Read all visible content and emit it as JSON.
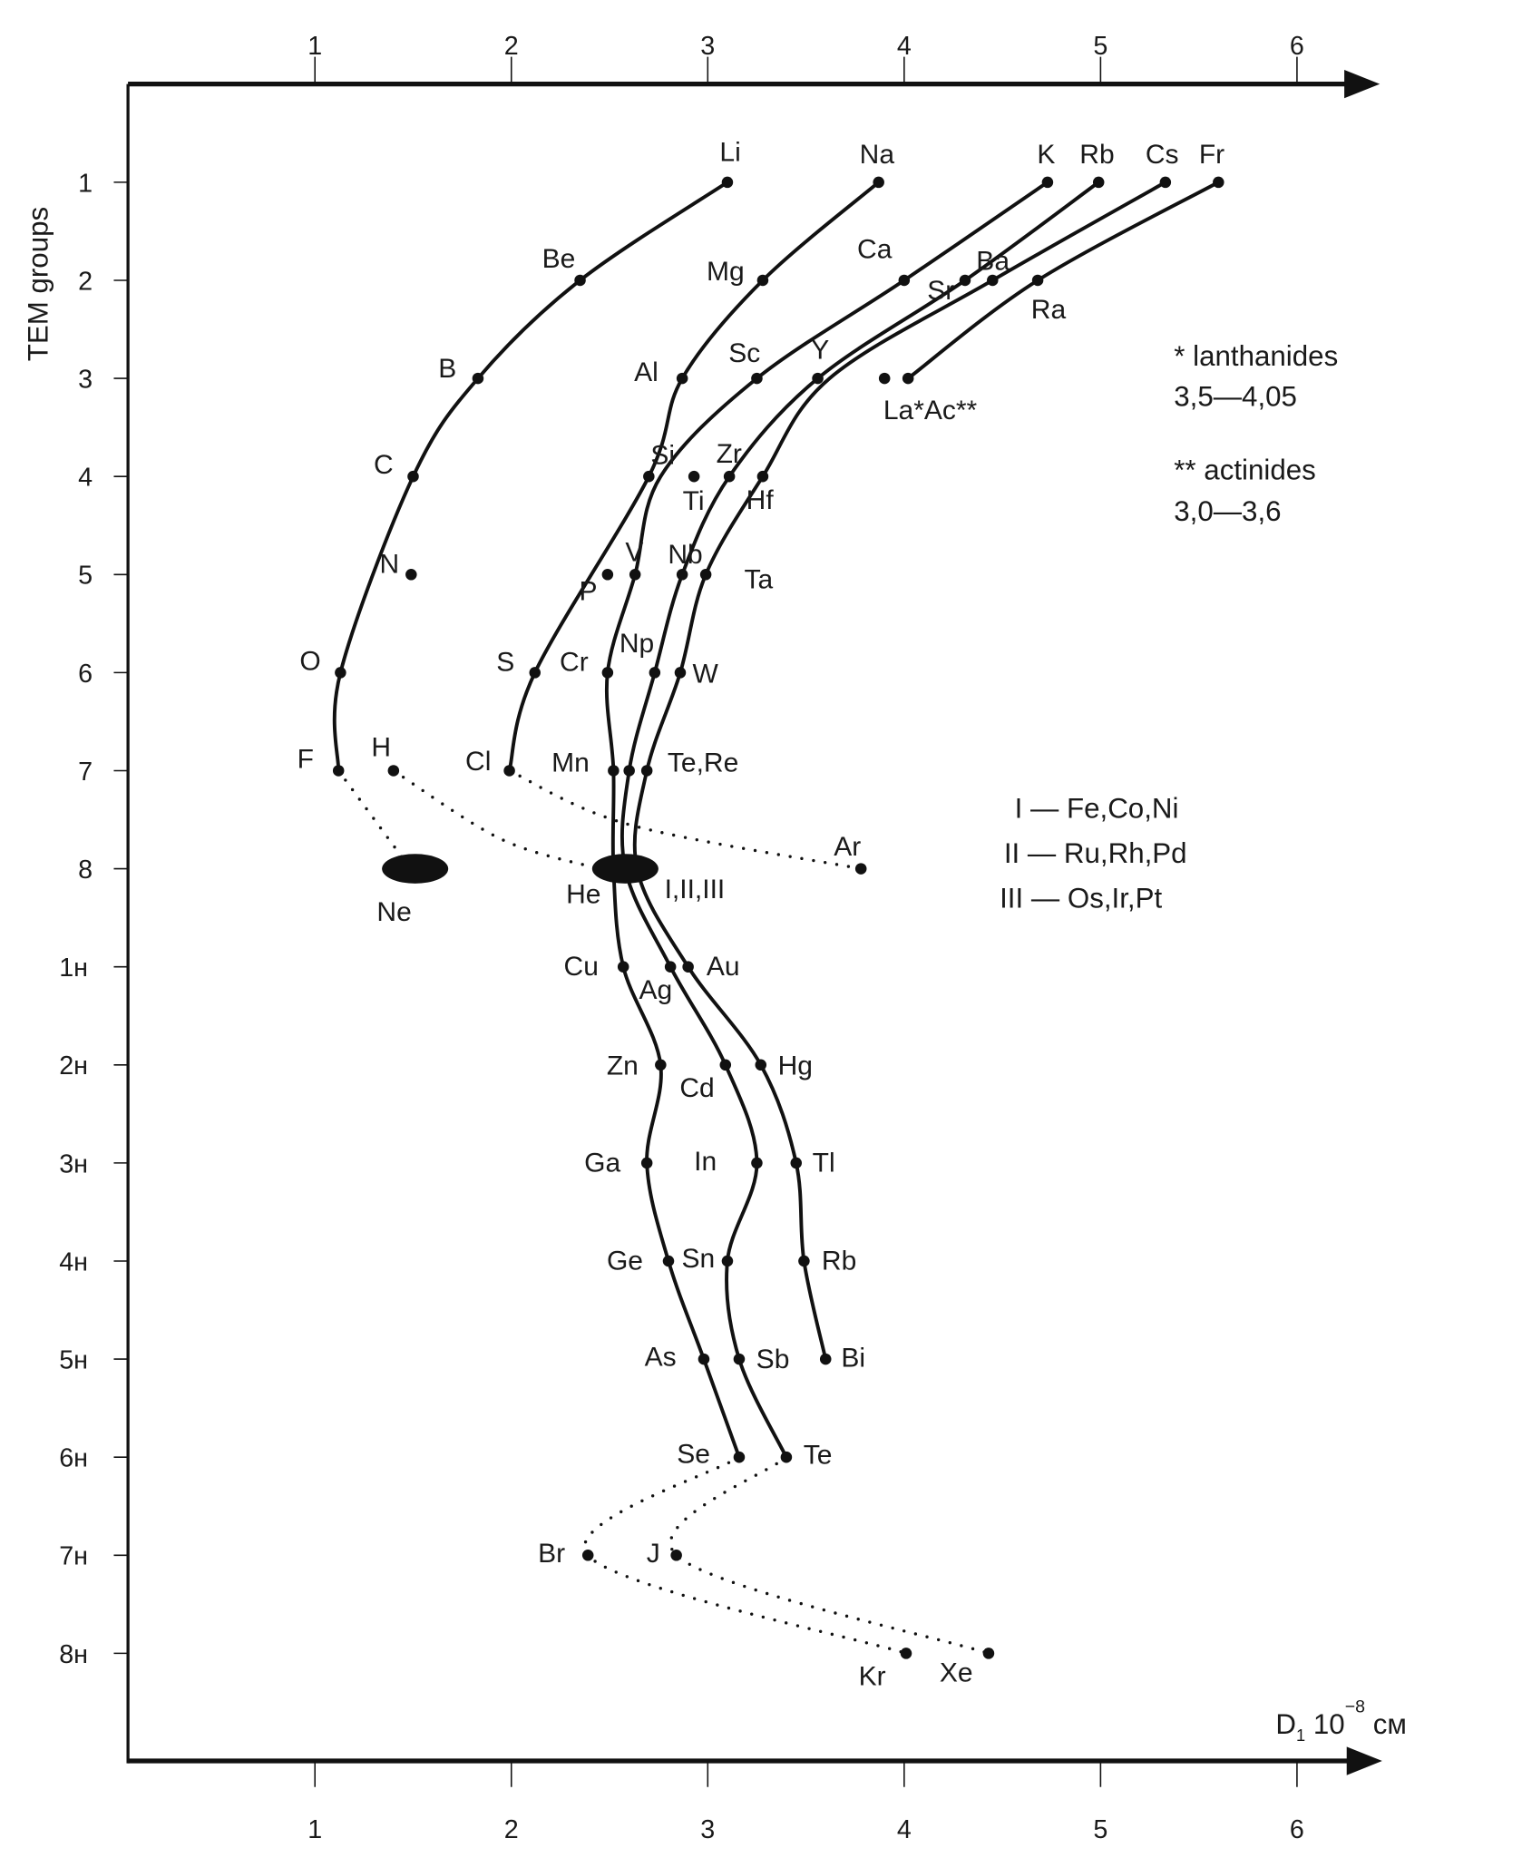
{
  "chart_data": {
    "type": "scatter",
    "title": "",
    "ylabel": "TEM groups",
    "xlabel": {
      "main": "D",
      "sub": "1",
      "base": " 10",
      "exp": "−8",
      "unit": " см"
    },
    "x_ticks": [
      "1",
      "2",
      "3",
      "4",
      "5",
      "6"
    ],
    "xlim": [
      0.05,
      6.3
    ],
    "groups": [
      "1",
      "2",
      "3",
      "4",
      "5",
      "6",
      "7",
      "8",
      "1н",
      "2н",
      "3н",
      "4н",
      "5н",
      "6н",
      "7н",
      "8н"
    ],
    "points": [
      {
        "id": "Li",
        "label": "Li",
        "x": 3.1,
        "group": 1
      },
      {
        "id": "Na",
        "label": "Na",
        "x": 3.87,
        "group": 1
      },
      {
        "id": "K",
        "label": "K",
        "x": 4.73,
        "group": 1
      },
      {
        "id": "Rb",
        "label": "Rb",
        "x": 4.99,
        "group": 1
      },
      {
        "id": "Cs",
        "label": "Cs",
        "x": 5.33,
        "group": 1
      },
      {
        "id": "Fr",
        "label": "Fr",
        "x": 5.6,
        "group": 1
      },
      {
        "id": "Be",
        "label": "Be",
        "x": 2.35,
        "group": 2
      },
      {
        "id": "Mg",
        "label": "Mg",
        "x": 3.28,
        "group": 2
      },
      {
        "id": "Ca",
        "label": "Ca",
        "x": 4.0,
        "group": 2
      },
      {
        "id": "Sr",
        "label": "Sr",
        "x": 4.31,
        "group": 2
      },
      {
        "id": "Ba",
        "label": "Ba",
        "x": 4.45,
        "group": 2
      },
      {
        "id": "Ra",
        "label": "Ra",
        "x": 4.68,
        "group": 2
      },
      {
        "id": "B",
        "label": "B",
        "x": 1.83,
        "group": 3
      },
      {
        "id": "Al",
        "label": "Al",
        "x": 2.87,
        "group": 3
      },
      {
        "id": "Sc",
        "label": "Sc",
        "x": 3.25,
        "group": 3
      },
      {
        "id": "Y",
        "label": "Y",
        "x": 3.56,
        "group": 3
      },
      {
        "id": "La",
        "label": "La*Ac**",
        "x": 3.9,
        "group": 3
      },
      {
        "id": "Ac",
        "label": "",
        "x": 4.02,
        "group": 3
      },
      {
        "id": "C",
        "label": "C",
        "x": 1.5,
        "group": 4
      },
      {
        "id": "Si",
        "label": "Si",
        "x": 2.7,
        "group": 4
      },
      {
        "id": "Ti",
        "label": "Ti",
        "x": 2.93,
        "group": 4
      },
      {
        "id": "Zr",
        "label": "Zr",
        "x": 3.11,
        "group": 4
      },
      {
        "id": "Hf",
        "label": "Hf",
        "x": 3.28,
        "group": 4
      },
      {
        "id": "N",
        "label": "N",
        "x": 1.49,
        "group": 5
      },
      {
        "id": "P",
        "label": "P",
        "x": 2.49,
        "group": 5
      },
      {
        "id": "V",
        "label": "V",
        "x": 2.63,
        "group": 5
      },
      {
        "id": "Nb",
        "label": "Nb",
        "x": 2.87,
        "group": 5
      },
      {
        "id": "Ta",
        "label": "Ta",
        "x": 2.99,
        "group": 5
      },
      {
        "id": "O",
        "label": "O",
        "x": 1.13,
        "group": 6
      },
      {
        "id": "S",
        "label": "S",
        "x": 2.12,
        "group": 6
      },
      {
        "id": "Cr",
        "label": "Cr",
        "x": 2.49,
        "group": 6
      },
      {
        "id": "Np",
        "label": "Np",
        "x": 2.73,
        "group": 6
      },
      {
        "id": "W",
        "label": "W",
        "x": 2.86,
        "group": 6
      },
      {
        "id": "F",
        "label": "F",
        "x": 1.12,
        "group": 7
      },
      {
        "id": "H",
        "label": "H",
        "x": 1.4,
        "group": 7
      },
      {
        "id": "Cl",
        "label": "Cl",
        "x": 1.99,
        "group": 7
      },
      {
        "id": "Mn",
        "label": "Mn",
        "x": 2.52,
        "group": 7
      },
      {
        "id": "Tc",
        "label": "",
        "x": 2.6,
        "group": 7
      },
      {
        "id": "Re",
        "label": "Te,Re",
        "x": 2.69,
        "group": 7
      },
      {
        "id": "Ne",
        "label": "Ne",
        "x": 1.51,
        "group": 8,
        "shape": "blob"
      },
      {
        "id": "He",
        "label": "He",
        "x": 2.58,
        "group": 8,
        "shape": "blob"
      },
      {
        "id": "I_II_III",
        "label": "I,II,III",
        "x": 2.58,
        "group": 8,
        "shape": "none"
      },
      {
        "id": "Ar",
        "label": "Ar",
        "x": 3.78,
        "group": 8
      },
      {
        "id": "Cu",
        "label": "Cu",
        "x": 2.57,
        "group": 9
      },
      {
        "id": "Ag",
        "label": "Ag",
        "x": 2.81,
        "group": 9
      },
      {
        "id": "Au",
        "label": "Au",
        "x": 2.9,
        "group": 9
      },
      {
        "id": "Zn",
        "label": "Zn",
        "x": 2.76,
        "group": 10
      },
      {
        "id": "Cd",
        "label": "Cd",
        "x": 3.09,
        "group": 10
      },
      {
        "id": "Hg",
        "label": "Hg",
        "x": 3.27,
        "group": 10
      },
      {
        "id": "Ga",
        "label": "Ga",
        "x": 2.69,
        "group": 11
      },
      {
        "id": "In",
        "label": "In",
        "x": 3.25,
        "group": 11
      },
      {
        "id": "Tl",
        "label": "Tl",
        "x": 3.45,
        "group": 11
      },
      {
        "id": "Ge",
        "label": "Ge",
        "x": 2.8,
        "group": 12
      },
      {
        "id": "Sn",
        "label": "Sn",
        "x": 3.1,
        "group": 12
      },
      {
        "id": "Pb",
        "label": "Rb",
        "x": 3.49,
        "group": 12
      },
      {
        "id": "As",
        "label": "As",
        "x": 2.98,
        "group": 13
      },
      {
        "id": "Sb",
        "label": "Sb",
        "x": 3.16,
        "group": 13
      },
      {
        "id": "Bi",
        "label": "Bi",
        "x": 3.6,
        "group": 13
      },
      {
        "id": "Se",
        "label": "Se",
        "x": 3.16,
        "group": 14
      },
      {
        "id": "Te",
        "label": "Te",
        "x": 3.4,
        "group": 14
      },
      {
        "id": "Br",
        "label": "Br",
        "x": 2.39,
        "group": 15
      },
      {
        "id": "J",
        "label": "J",
        "x": 2.84,
        "group": 15
      },
      {
        "id": "Kr",
        "label": "Kr",
        "x": 4.01,
        "group": 16
      },
      {
        "id": "Xe",
        "label": "Xe",
        "x": 4.43,
        "group": 16
      }
    ],
    "curves": [
      {
        "style": "solid",
        "path": [
          "Li",
          "Be",
          "B",
          "C",
          "O",
          "F"
        ]
      },
      {
        "style": "solid",
        "path": [
          "Na",
          "Mg",
          "Al",
          "Si",
          "S",
          "Cl"
        ]
      },
      {
        "style": "solid",
        "path": [
          "K",
          "Ca",
          "Sc",
          [
            2.76,
            4.0
          ],
          "V",
          "Cr",
          "Mn",
          [
            2.52,
            8
          ],
          "Cu",
          "Zn",
          "Ga",
          "Ge",
          "As",
          "Se"
        ]
      },
      {
        "style": "solid",
        "path": [
          "Rb",
          "Sr",
          "Y",
          "Zr",
          "Nb",
          "Np",
          "Tc",
          [
            2.58,
            8
          ],
          "Ag",
          "Cd",
          "In",
          "Sn",
          "Sb",
          "Te"
        ]
      },
      {
        "style": "solid",
        "path": [
          "Cs",
          "Ba",
          [
            3.62,
            3.0
          ],
          "Hf",
          "Ta",
          "W",
          "Re",
          [
            2.64,
            8
          ],
          "Au",
          "Hg",
          "Tl",
          "Pb",
          "Bi"
        ]
      },
      {
        "style": "solid",
        "path": [
          "Fr",
          "Ra",
          "Ac"
        ]
      },
      {
        "style": "dotted",
        "path": [
          "F",
          [
            1.45,
            7.9
          ]
        ]
      },
      {
        "style": "dotted",
        "path": [
          "H",
          [
            1.95,
            7.7
          ],
          [
            2.45,
            8
          ]
        ]
      },
      {
        "style": "dotted",
        "path": [
          "Cl",
          [
            2.6,
            7.55
          ],
          "Ar"
        ]
      },
      {
        "style": "dotted",
        "path": [
          "Se",
          "Br",
          "Kr"
        ]
      },
      {
        "style": "dotted",
        "path": [
          "Te",
          "J",
          "Xe"
        ]
      }
    ],
    "legend_groups": [
      "I — Fe,Co,Ni",
      "II — Ru,Rh,Pd",
      "III — Os,Ir,Pt"
    ],
    "notes": {
      "lanthanides": "* lanthanides",
      "lanthanides_range": "3,5—4,05",
      "actinides": "** actinides",
      "actinides_range": "3,0—3,6"
    }
  }
}
